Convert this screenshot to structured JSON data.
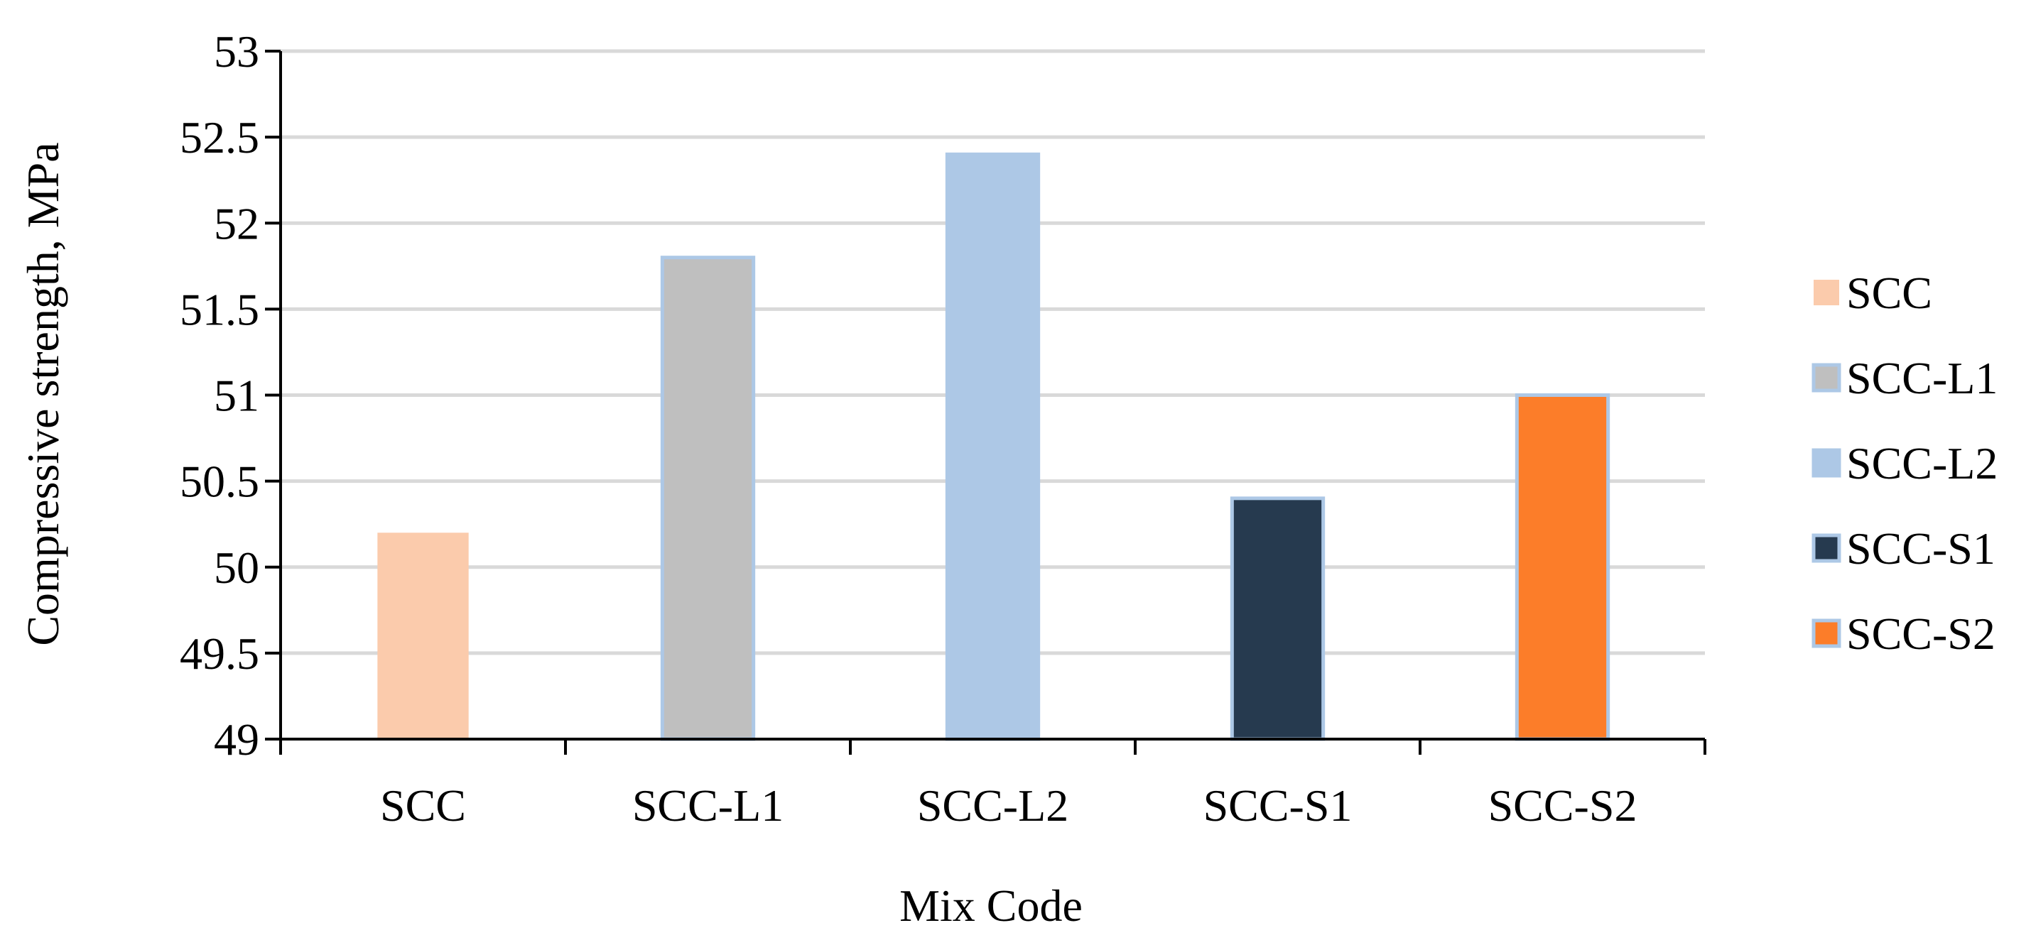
{
  "chart_data": {
    "type": "bar",
    "categories": [
      "SCC",
      "SCC-L1",
      "SCC-L2",
      "SCC-S1",
      "SCC-S2"
    ],
    "values": [
      50.2,
      51.8,
      52.4,
      50.4,
      51.0
    ],
    "colors": [
      "#FBCBAC",
      "#BFBFBF",
      "#ADC8E6",
      "#263A4F",
      "#FC7D29"
    ],
    "bar_outline_color": "#ADC8E6",
    "title": "",
    "xlabel": "Mix Code",
    "ylabel": "Compressive strength, MPa",
    "ylim": [
      49,
      53
    ],
    "yticks": [
      49,
      49.5,
      50,
      50.5,
      51,
      51.5,
      52,
      52.5,
      53
    ],
    "ytick_labels": [
      "49",
      "49.5",
      "50",
      "50.5",
      "51",
      "51.5",
      "52",
      "52.5",
      "53"
    ],
    "grid": true,
    "gridline_color": "#D9D9D9",
    "legend": {
      "position": "right",
      "entries": [
        "SCC",
        "SCC-L1",
        "SCC-L2",
        "SCC-S1",
        "SCC-S2"
      ]
    }
  }
}
